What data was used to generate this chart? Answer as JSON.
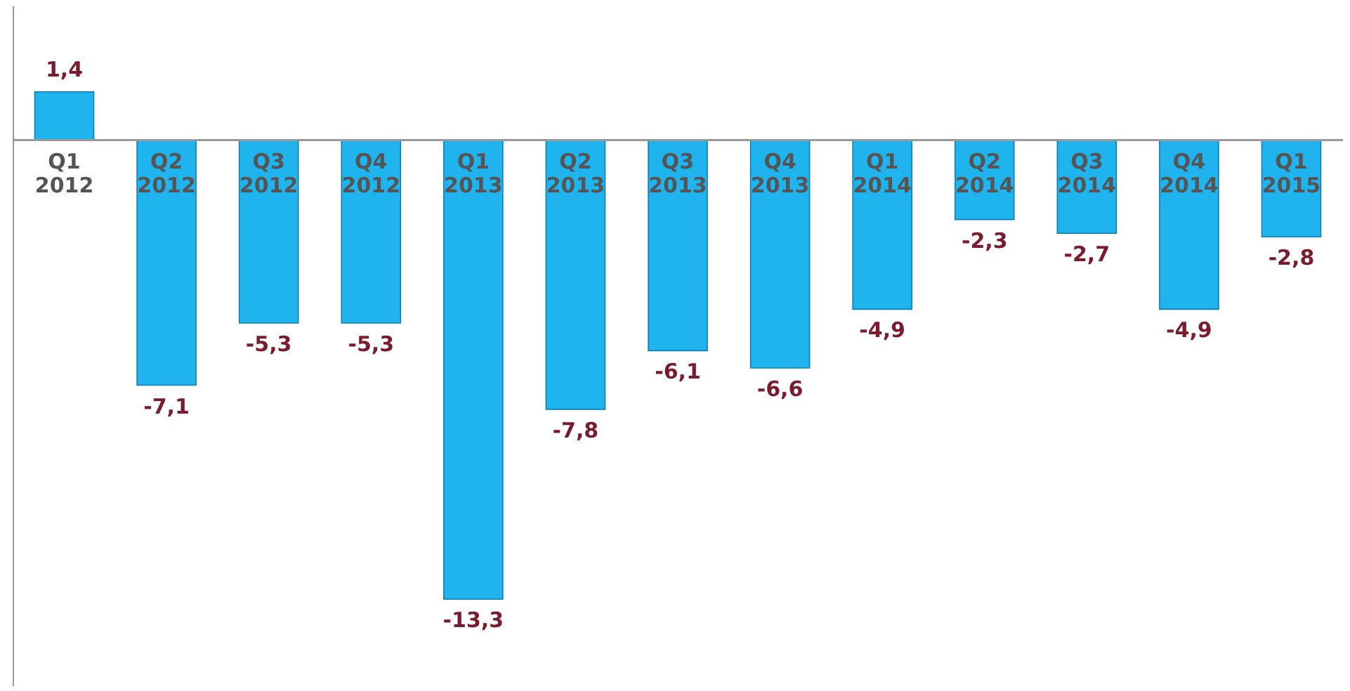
{
  "chart_data": {
    "type": "bar",
    "categories": [
      "Q1 2012",
      "Q2 2012",
      "Q3 2012",
      "Q4 2012",
      "Q1 2013",
      "Q2 2013",
      "Q3 2013",
      "Q4 2013",
      "Q1 2014",
      "Q2 2014",
      "Q3 2014",
      "Q4 2014",
      "Q1 2015"
    ],
    "values": [
      1.4,
      -7.1,
      -5.3,
      -5.3,
      -13.3,
      -7.8,
      -6.1,
      -6.6,
      -4.9,
      -2.3,
      -2.7,
      -4.9,
      -2.8
    ],
    "value_labels": [
      "1,4",
      "-7,1",
      "-5,3",
      "-5,3",
      "-13,3",
      "-7,8",
      "-6,1",
      "-6,6",
      "-4,9",
      "-2,3",
      "-2,7",
      "-4,9",
      "-2,8"
    ],
    "color": "#1fb4ee",
    "grid": false
  }
}
